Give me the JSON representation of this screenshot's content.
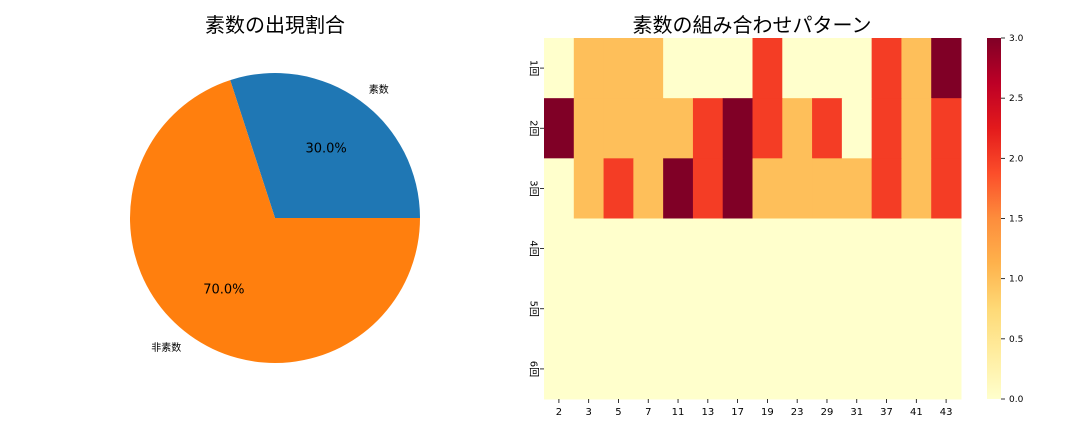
{
  "chart_data": [
    {
      "type": "pie",
      "title": "素数の出現割合",
      "labels": [
        "素数",
        "非素数"
      ],
      "values": [
        30.0,
        70.0
      ],
      "percent_labels": [
        "30.0%",
        "70.0%"
      ],
      "colors": [
        "#1f77b4",
        "#ff7f0e"
      ],
      "start_angle_deg": 0,
      "direction": "counterclockwise"
    },
    {
      "type": "heatmap",
      "title": "素数の組み合わせパターン",
      "x_categories": [
        "2",
        "3",
        "5",
        "7",
        "11",
        "13",
        "17",
        "19",
        "23",
        "29",
        "31",
        "37",
        "41",
        "43"
      ],
      "y_categories": [
        "1回",
        "2回",
        "3回",
        "4回",
        "5回",
        "6回"
      ],
      "values": [
        [
          0,
          1,
          1,
          1,
          0,
          0,
          0,
          2,
          0,
          0,
          0,
          2,
          1,
          3
        ],
        [
          3,
          1,
          1,
          1,
          1,
          2,
          3,
          2,
          1,
          2,
          0,
          2,
          1,
          2
        ],
        [
          0,
          1,
          2,
          1,
          3,
          2,
          3,
          1,
          1,
          1,
          1,
          2,
          1,
          2
        ],
        [
          0,
          0,
          0,
          0,
          0,
          0,
          0,
          0,
          0,
          0,
          0,
          0,
          0,
          0
        ],
        [
          0,
          0,
          0,
          0,
          0,
          0,
          0,
          0,
          0,
          0,
          0,
          0,
          0,
          0
        ],
        [
          0,
          0,
          0,
          0,
          0,
          0,
          0,
          0,
          0,
          0,
          0,
          0,
          0,
          0
        ]
      ],
      "vmin": 0,
      "vmax": 3,
      "colormap": "YlOrRd",
      "color_levels": {
        "0": "#ffffcc",
        "1": "#febf5a",
        "2": "#f43d25",
        "3": "#800026"
      },
      "colorbar_ticks": [
        "0.0",
        "0.5",
        "1.0",
        "1.5",
        "2.0",
        "2.5",
        "3.0"
      ]
    }
  ]
}
